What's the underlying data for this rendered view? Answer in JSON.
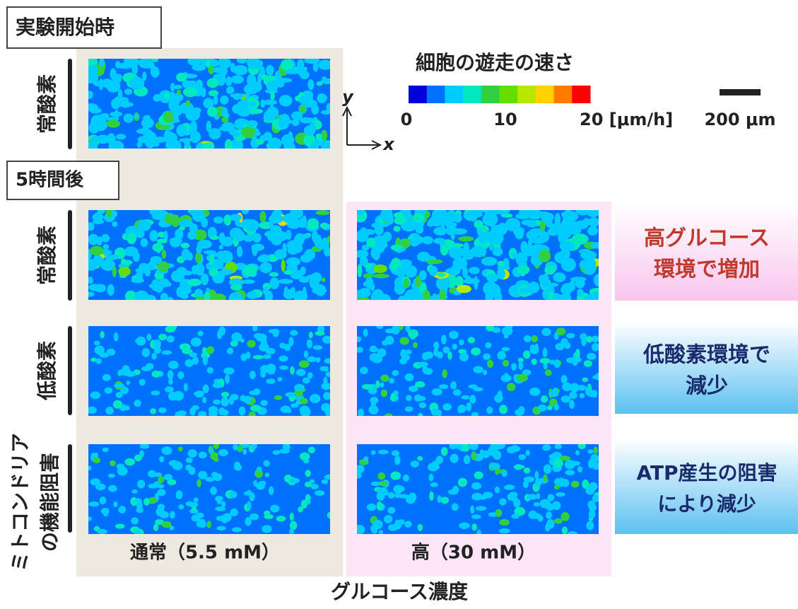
{
  "header": {
    "start_label": "実験開始時",
    "after_label": "5時間後"
  },
  "rows": {
    "start": "常酸素",
    "normoxia": "常酸素",
    "hypoxia": "低酸素",
    "mito_lines": [
      "ミトコンドリア",
      "の機能阻害"
    ]
  },
  "columns": {
    "normal": "通常（5.5 mM）",
    "high": "高（30 mM）",
    "title": "グルコース濃度"
  },
  "colorbar": {
    "title": "細胞の遊走の速さ",
    "tick_labels": [
      "0",
      "10",
      "20 [μm/h]"
    ],
    "colors": [
      "#0000d8",
      "#0070ff",
      "#00ccff",
      "#00e8c0",
      "#30d040",
      "#66dd00",
      "#b8e800",
      "#ffd200",
      "#ff7a00",
      "#ff0000"
    ]
  },
  "scale_bar": "200 μm",
  "axes": {
    "y": "y",
    "x": "x"
  },
  "notes": [
    {
      "lines": [
        "高グルコース",
        "環境で増加"
      ]
    },
    {
      "lines": [
        "低酸素環境で",
        "減少"
      ]
    },
    {
      "lines": [
        "ATP産生の阻害",
        "により減少"
      ]
    }
  ]
}
